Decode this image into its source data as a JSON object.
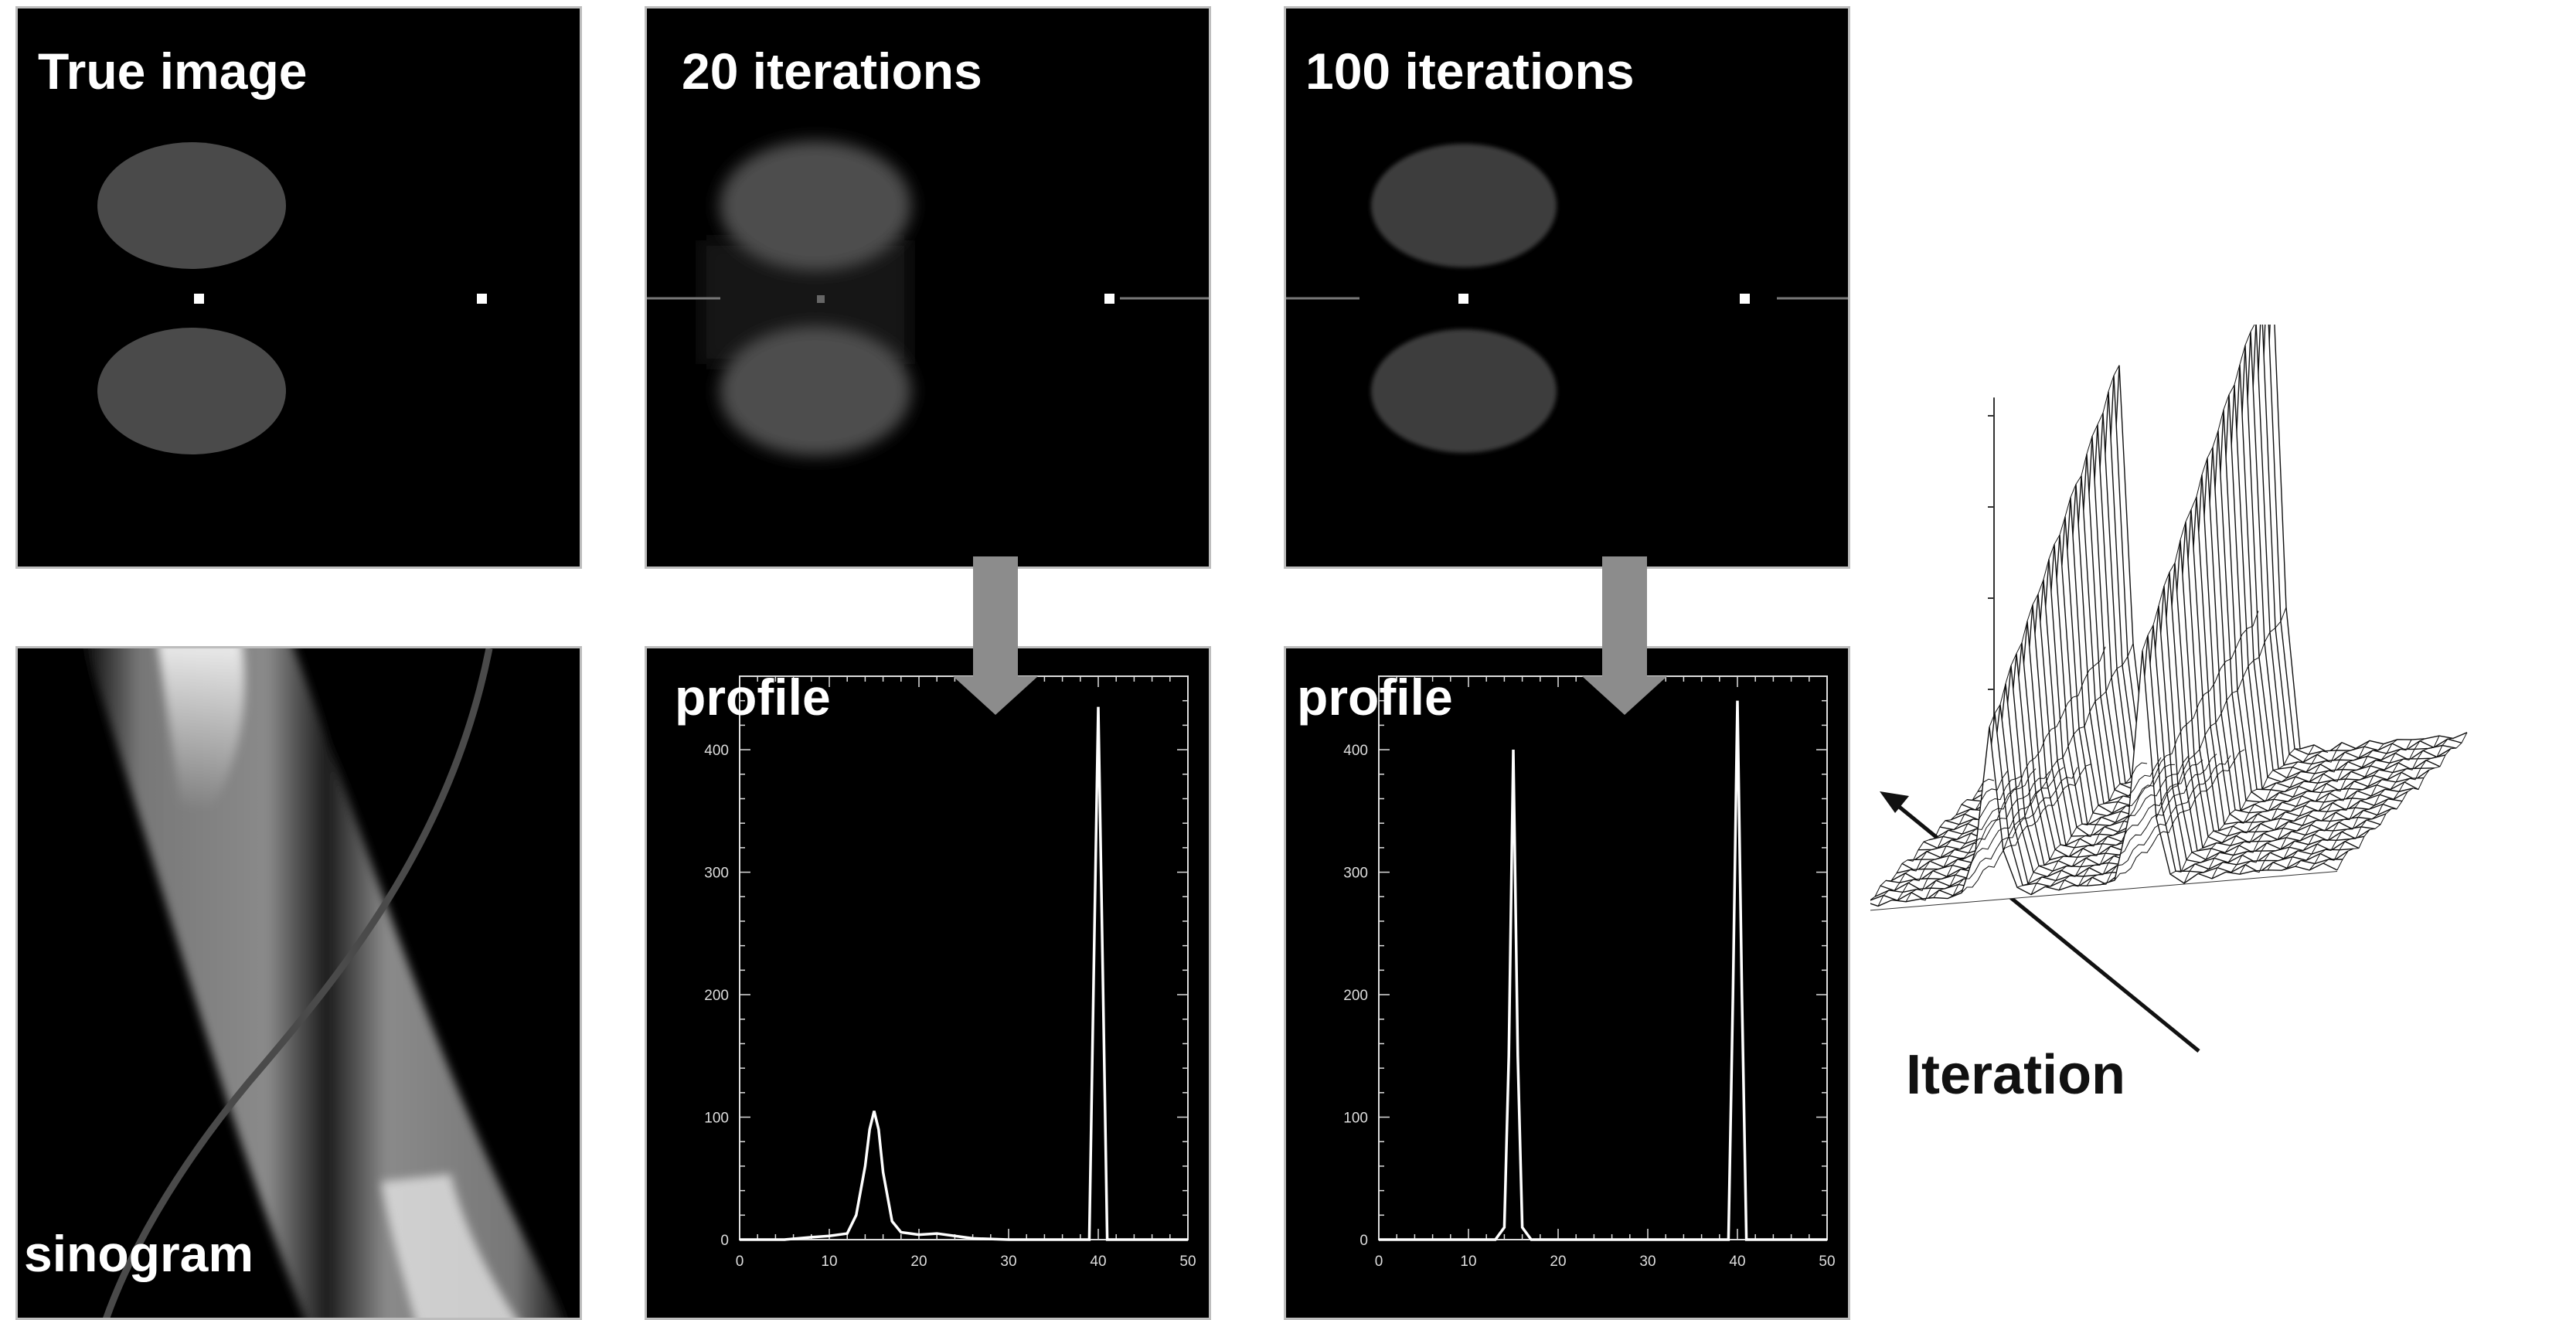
{
  "panels": {
    "true_image": "True image",
    "iter20": "20 iterations",
    "iter100": "100 iterations",
    "sinogram": "sinogram",
    "profile20": "profile",
    "profile100": "profile"
  },
  "surface_plot": {
    "axis_label": "Iteration"
  },
  "chart_data": [
    {
      "type": "line",
      "title": "profile",
      "xlabel": "",
      "ylabel": "",
      "xlim": [
        0,
        50
      ],
      "ylim": [
        0,
        460
      ],
      "xticks": [
        "0",
        "10",
        "20",
        "30",
        "40",
        "50"
      ],
      "yticks": [
        "0",
        "100",
        "200",
        "300",
        "400"
      ],
      "series": [
        {
          "x": [
            0,
            5,
            8,
            10,
            12,
            13,
            14,
            14.5,
            15,
            15.5,
            16,
            17,
            18,
            20,
            22,
            24,
            26,
            30,
            35,
            38,
            39,
            39.5,
            40,
            40.5,
            41,
            42,
            45,
            50
          ],
          "values": [
            0,
            0,
            2,
            3,
            5,
            20,
            60,
            90,
            105,
            90,
            55,
            15,
            6,
            4,
            5,
            3,
            1,
            0,
            0,
            0,
            0,
            220,
            435,
            220,
            0,
            0,
            0,
            0
          ]
        }
      ]
    },
    {
      "type": "line",
      "title": "profile",
      "xlabel": "",
      "ylabel": "",
      "xlim": [
        0,
        50
      ],
      "ylim": [
        0,
        460
      ],
      "xticks": [
        "0",
        "10",
        "20",
        "30",
        "40",
        "50"
      ],
      "yticks": [
        "0",
        "100",
        "200",
        "300",
        "400"
      ],
      "series": [
        {
          "x": [
            0,
            10,
            13,
            14,
            14.5,
            15,
            15.5,
            16,
            17,
            20,
            30,
            38,
            39,
            39.5,
            40,
            40.5,
            41,
            42,
            50
          ],
          "values": [
            0,
            0,
            0,
            10,
            150,
            400,
            150,
            10,
            0,
            0,
            0,
            0,
            0,
            200,
            440,
            200,
            0,
            0,
            0
          ]
        }
      ]
    }
  ]
}
